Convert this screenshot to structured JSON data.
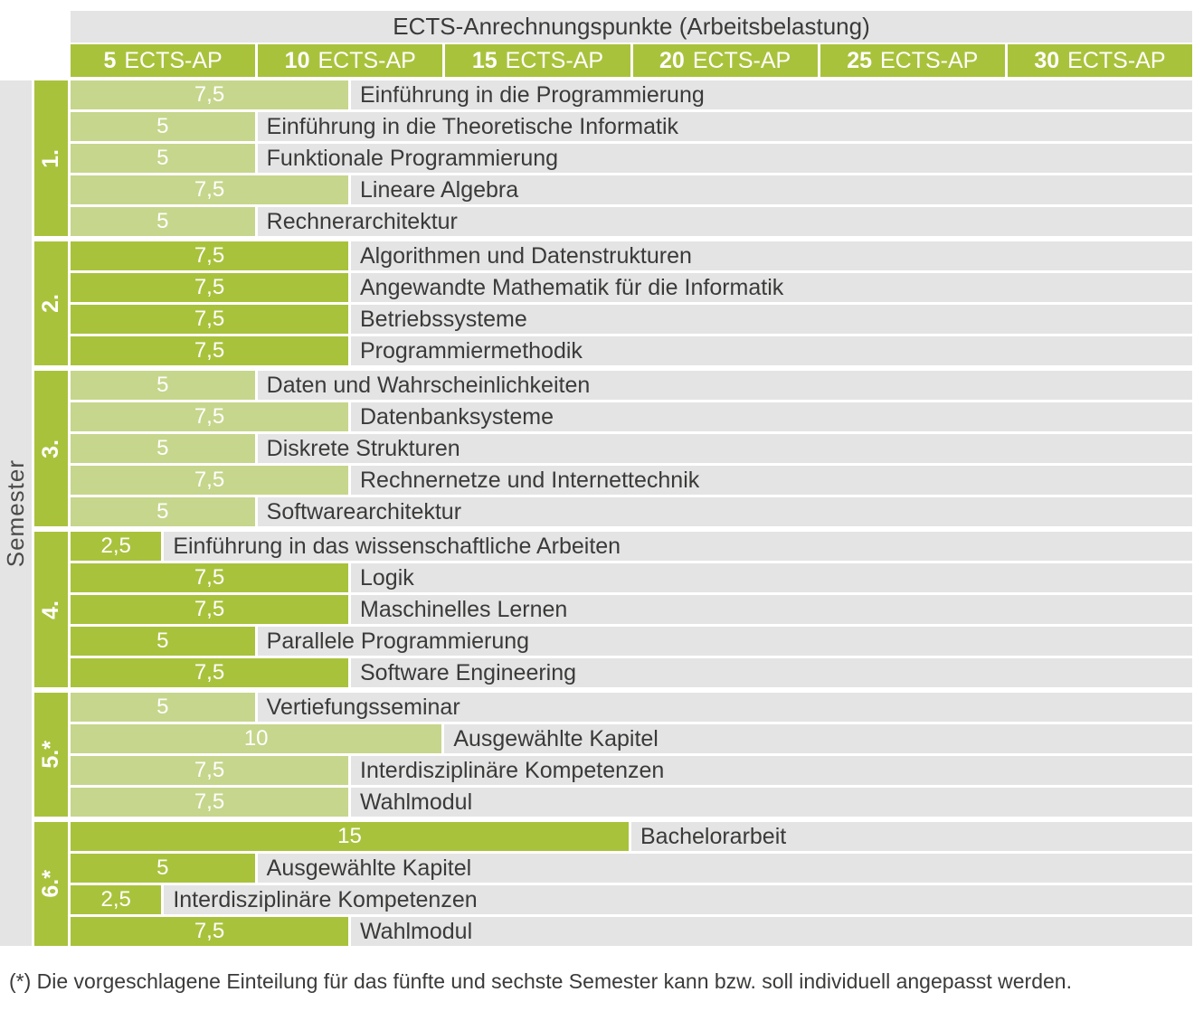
{
  "title": "ECTS-Anrechnungspunkte (Arbeitsbelastung)",
  "y_axis_label": "Semester",
  "footnote": "(*) Die vorgeschlagene Einteilung für das fünfte und sechste Semester kann bzw. soll individuell angepasst werden.",
  "header": {
    "columns": [
      {
        "number": "5",
        "unit": "ECTS-AP"
      },
      {
        "number": "10",
        "unit": "ECTS-AP"
      },
      {
        "number": "15",
        "unit": "ECTS-AP"
      },
      {
        "number": "20",
        "unit": "ECTS-AP"
      },
      {
        "number": "25",
        "unit": "ECTS-AP"
      },
      {
        "number": "30",
        "unit": "ECTS-AP"
      }
    ]
  },
  "colors": {
    "bar_dark": "#a9c23c",
    "bar_light": "#c6d68c",
    "row_background": "#e4e4e4",
    "text_dark": "#3a3a39",
    "header_text": "#ffffff"
  },
  "chart_data": {
    "type": "bar",
    "orientation": "horizontal",
    "title": "ECTS-Anrechnungspunkte (Arbeitsbelastung)",
    "xlabel": "ECTS-AP",
    "ylabel": "Semester",
    "xlim": [
      0,
      30
    ],
    "x_ticks": [
      5,
      10,
      15,
      20,
      25,
      30
    ],
    "grid": false,
    "legend": "none",
    "groups": [
      {
        "semester": "1.",
        "shade": "light",
        "modules": [
          {
            "ects": 7.5,
            "ects_label": "7,5",
            "course": "Einführung in die Programmierung"
          },
          {
            "ects": 5,
            "ects_label": "5",
            "course": "Einführung in die Theoretische Informatik"
          },
          {
            "ects": 5,
            "ects_label": "5",
            "course": "Funktionale Programmierung"
          },
          {
            "ects": 7.5,
            "ects_label": "7,5",
            "course": "Lineare Algebra"
          },
          {
            "ects": 5,
            "ects_label": "5",
            "course": "Rechnerarchitektur"
          }
        ]
      },
      {
        "semester": "2.",
        "shade": "dark",
        "modules": [
          {
            "ects": 7.5,
            "ects_label": "7,5",
            "course": "Algorithmen und Datenstrukturen"
          },
          {
            "ects": 7.5,
            "ects_label": "7,5",
            "course": "Angewandte Mathematik für die Informatik"
          },
          {
            "ects": 7.5,
            "ects_label": "7,5",
            "course": "Betriebssysteme"
          },
          {
            "ects": 7.5,
            "ects_label": "7,5",
            "course": "Programmiermethodik"
          }
        ]
      },
      {
        "semester": "3.",
        "shade": "light",
        "modules": [
          {
            "ects": 5,
            "ects_label": "5",
            "course": "Daten und Wahrscheinlichkeiten"
          },
          {
            "ects": 7.5,
            "ects_label": "7,5",
            "course": "Datenbanksysteme"
          },
          {
            "ects": 5,
            "ects_label": "5",
            "course": "Diskrete Strukturen"
          },
          {
            "ects": 7.5,
            "ects_label": "7,5",
            "course": "Rechnernetze und Internettechnik"
          },
          {
            "ects": 5,
            "ects_label": "5",
            "course": "Softwarearchitektur"
          }
        ]
      },
      {
        "semester": "4.",
        "shade": "dark",
        "modules": [
          {
            "ects": 2.5,
            "ects_label": "2,5",
            "course": "Einführung in das wissenschaftliche Arbeiten"
          },
          {
            "ects": 7.5,
            "ects_label": "7,5",
            "course": "Logik"
          },
          {
            "ects": 7.5,
            "ects_label": "7,5",
            "course": "Maschinelles Lernen"
          },
          {
            "ects": 5,
            "ects_label": "5",
            "course": "Parallele Programmierung"
          },
          {
            "ects": 7.5,
            "ects_label": "7,5",
            "course": "Software Engineering"
          }
        ]
      },
      {
        "semester": "5.*",
        "shade": "light",
        "modules": [
          {
            "ects": 5,
            "ects_label": "5",
            "course": "Vertiefungsseminar"
          },
          {
            "ects": 10,
            "ects_label": "10",
            "course": "Ausgewählte Kapitel"
          },
          {
            "ects": 7.5,
            "ects_label": "7,5",
            "course": "Interdisziplinäre Kompetenzen"
          },
          {
            "ects": 7.5,
            "ects_label": "7,5",
            "course": "Wahlmodul"
          }
        ]
      },
      {
        "semester": "6.*",
        "shade": "dark",
        "modules": [
          {
            "ects": 15,
            "ects_label": "15",
            "course": "Bachelorarbeit"
          },
          {
            "ects": 5,
            "ects_label": "5",
            "course": "Ausgewählte Kapitel"
          },
          {
            "ects": 2.5,
            "ects_label": "2,5",
            "course": "Interdisziplinäre Kompetenzen"
          },
          {
            "ects": 7.5,
            "ects_label": "7,5",
            "course": "Wahlmodul"
          }
        ]
      }
    ]
  }
}
